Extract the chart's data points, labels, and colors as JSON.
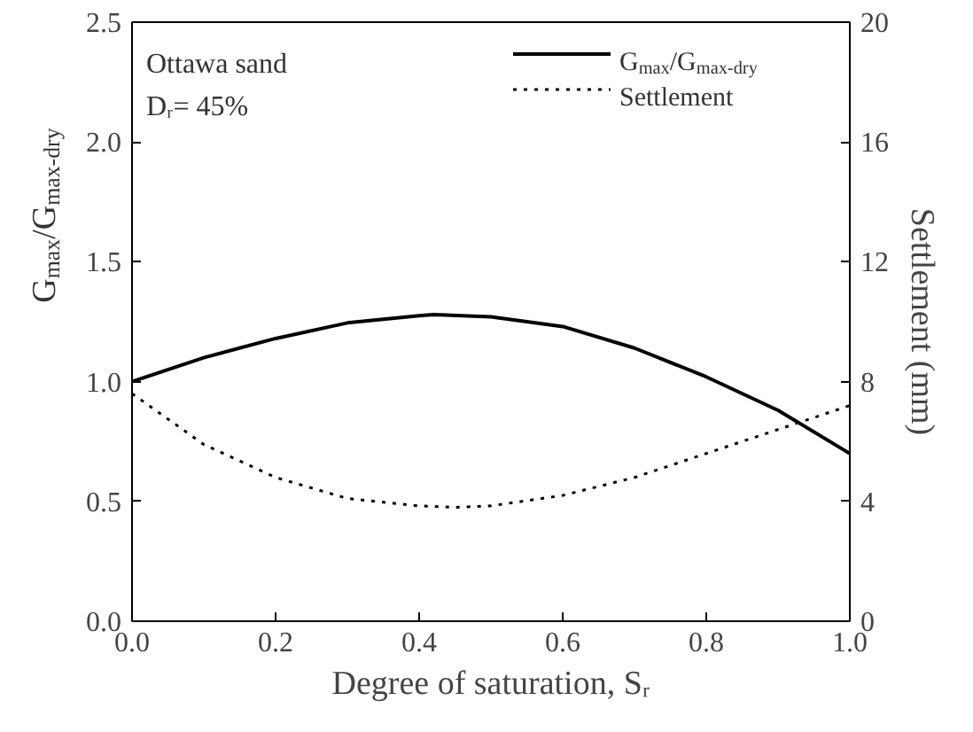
{
  "chart_data": {
    "type": "line",
    "xlabel": "Degree of saturation, Sᵣ",
    "ylabel": "G$_{max}$/G$_{max-dry}$",
    "y2label": "Settlement (mm)",
    "annotations": [
      "Ottawa sand",
      "Dᵣ= 45%"
    ],
    "series": [
      {
        "name": "G$_{max}$/G$_{max-dry}$",
        "color": "#000000",
        "line_style": "solid",
        "x": [
          0,
          0.1,
          0.2,
          0.3,
          0.4,
          0.42,
          0.5,
          0.6,
          0.7,
          0.8,
          0.9,
          1.0
        ],
        "values": [
          1.0,
          1.1,
          1.18,
          1.245,
          1.275,
          1.28,
          1.27,
          1.23,
          1.14,
          1.02,
          0.88,
          0.7
        ]
      },
      {
        "name": "Settlement",
        "color": "#000000",
        "line_style": "dotted",
        "axis": "y2",
        "x": [
          0,
          0.1,
          0.2,
          0.3,
          0.4,
          0.45,
          0.5,
          0.6,
          0.7,
          0.8,
          0.9,
          1.0
        ],
        "values": [
          7.6,
          5.9,
          4.8,
          4.1,
          3.85,
          3.8,
          3.85,
          4.2,
          4.8,
          5.6,
          6.4,
          7.2
        ]
      }
    ],
    "xlim": [
      0,
      1.0
    ],
    "xticks": [
      {
        "value": 0,
        "label": "0.0"
      },
      {
        "value": 0.2,
        "label": "0.2"
      },
      {
        "value": 0.4,
        "label": "0.4"
      },
      {
        "value": 0.6,
        "label": "0.6"
      },
      {
        "value": 0.8,
        "label": "0.8"
      },
      {
        "value": 1.0,
        "label": "1.0"
      }
    ],
    "ylim": [
      0,
      2.5
    ],
    "yticks": [
      {
        "value": 0,
        "label": "0.0"
      },
      {
        "value": 0.5,
        "label": "0.5"
      },
      {
        "value": 1.0,
        "label": "1.0"
      },
      {
        "value": 1.5,
        "label": "1.5"
      },
      {
        "value": 2.0,
        "label": "2.0"
      },
      {
        "value": 2.5,
        "label": "2.5"
      }
    ],
    "y2lim": [
      0,
      20
    ],
    "y2ticks": [
      0,
      4,
      8,
      12,
      16,
      20
    ],
    "grid": false,
    "legend": "top right"
  }
}
